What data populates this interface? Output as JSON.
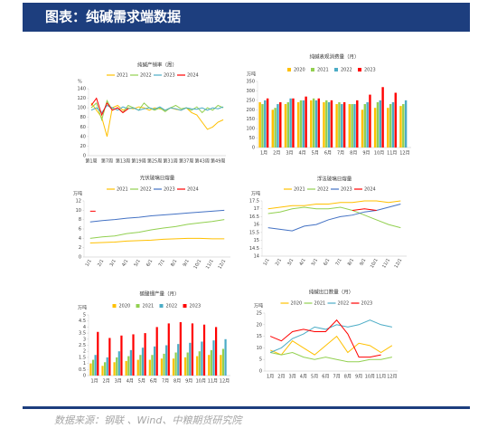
{
  "header": {
    "title": "图表：纯碱需求端数据"
  },
  "footer": {
    "source": "数据来源：钢联 、Wind、中粮期货研究院"
  },
  "chart_data": [
    {
      "type": "line",
      "title": "纯碱产销率（周）",
      "y_label": "%",
      "ylim": [
        0,
        140
      ],
      "yticks": [
        0,
        20,
        40,
        60,
        80,
        100,
        120,
        140
      ],
      "categories": [
        "第1周",
        null,
        null,
        "第7周",
        null,
        null,
        "第13周",
        null,
        null,
        "第19周",
        null,
        null,
        "第25周",
        null,
        null,
        "第31周",
        null,
        null,
        "第37周",
        null,
        null,
        "第43周",
        null,
        null,
        "第49周",
        null
      ],
      "series": [
        {
          "name": "2021",
          "color": "#ffc000",
          "values": [
            110,
            95,
            80,
            40,
            100,
            105,
            95,
            100,
            98,
            102,
            100,
            95,
            100,
            98,
            95,
            100,
            97,
            95,
            100,
            90,
            85,
            70,
            55,
            60,
            70,
            75
          ]
        },
        {
          "name": "2022",
          "color": "#92d050",
          "values": [
            100,
            110,
            75,
            115,
            95,
            100,
            90,
            105,
            100,
            95,
            110,
            100,
            95,
            100,
            92,
            100,
            105,
            98,
            100,
            95,
            102,
            90,
            100,
            95,
            105,
            100
          ]
        },
        {
          "name": "2023",
          "color": "#4bacc6",
          "values": [
            95,
            100,
            90,
            105,
            100,
            95,
            102,
            98,
            100,
            95,
            98,
            100,
            97,
            102,
            95,
            100,
            98,
            95,
            100,
            98,
            97,
            100,
            95,
            100,
            98,
            102
          ]
        },
        {
          "name": "2024",
          "color": "#ff0000",
          "values": [
            105,
            120,
            85,
            110,
            95,
            100,
            90,
            98,
            null,
            null,
            null,
            null,
            null,
            null,
            null,
            null,
            null,
            null,
            null,
            null,
            null,
            null,
            null,
            null,
            null,
            null
          ]
        }
      ]
    },
    {
      "type": "bar",
      "title": "纯碱表观消费量（月）",
      "y_label": "万吨",
      "ylim": [
        0,
        350
      ],
      "yticks": [
        0,
        50,
        100,
        150,
        200,
        250,
        300,
        350
      ],
      "categories": [
        "1月",
        "2月",
        "3月",
        "4月",
        "5月",
        "6月",
        "7月",
        "8月",
        "9月",
        "10月",
        "11月",
        "12月"
      ],
      "series": [
        {
          "name": "2020",
          "color": "#ffc000",
          "values": [
            240,
            200,
            230,
            240,
            250,
            240,
            230,
            230,
            200,
            210,
            210,
            220
          ]
        },
        {
          "name": "2021",
          "color": "#92d050",
          "values": [
            230,
            210,
            240,
            250,
            260,
            250,
            240,
            230,
            230,
            240,
            230,
            230
          ]
        },
        {
          "name": "2022",
          "color": "#4bacc6",
          "values": [
            250,
            230,
            260,
            250,
            250,
            240,
            230,
            230,
            240,
            250,
            240,
            250
          ]
        },
        {
          "name": "2023",
          "color": "#ff0000",
          "values": [
            260,
            240,
            260,
            270,
            260,
            250,
            240,
            250,
            280,
            320,
            290,
            null
          ]
        }
      ]
    },
    {
      "type": "line",
      "title": "光伏玻璃日熔量",
      "y_label": "万吨",
      "ylim": [
        0,
        12
      ],
      "yticks": [
        0,
        2,
        4,
        6,
        8,
        10,
        12
      ],
      "categories": [
        "1/1",
        "2/1",
        "3/1",
        "4/1",
        "5/1",
        "6/1",
        "7/1",
        "8/1",
        "9/1",
        "10/1",
        "11/1",
        "12/1"
      ],
      "series": [
        {
          "name": "2021",
          "color": "#ffc000",
          "values": [
            3,
            3.1,
            3.2,
            3.4,
            3.5,
            3.6,
            3.8,
            3.9,
            4,
            4,
            3.9,
            3.9
          ]
        },
        {
          "name": "2022",
          "color": "#92d050",
          "values": [
            4,
            4.3,
            4.5,
            5,
            5.3,
            5.8,
            6.2,
            6.5,
            7,
            7.3,
            7.6,
            8
          ]
        },
        {
          "name": "2023",
          "color": "#4472c4",
          "values": [
            7.5,
            7.8,
            8,
            8.3,
            8.5,
            8.8,
            9,
            9.2,
            9.4,
            9.6,
            9.8,
            10
          ]
        },
        {
          "name": "2024",
          "color": "#ff0000",
          "values": [
            9.8,
            null,
            null,
            null,
            null,
            null,
            null,
            null,
            null,
            null,
            null,
            null
          ]
        }
      ]
    },
    {
      "type": "line",
      "title": "浮法玻璃日熔量",
      "y_label": "万吨",
      "ylim": [
        14,
        17.5
      ],
      "yticks": [
        14,
        14.5,
        15,
        15.5,
        16,
        16.5,
        17,
        17.5
      ],
      "categories": [
        "1/1",
        "2/1",
        "3/1",
        "4/1",
        "5/1",
        "6/1",
        "7/1",
        "8/1",
        "9/1",
        "10/1",
        "11/1",
        "12/1"
      ],
      "series": [
        {
          "name": "2021",
          "color": "#ffc000",
          "values": [
            17.0,
            17.1,
            17.2,
            17.2,
            17.3,
            17.3,
            17.4,
            17.4,
            17.5,
            17.5,
            17.4,
            17.5
          ]
        },
        {
          "name": "2022",
          "color": "#92d050",
          "values": [
            16.7,
            16.8,
            17.0,
            17.1,
            17.0,
            17.0,
            17.1,
            16.9,
            16.6,
            16.3,
            16.0,
            15.8
          ]
        },
        {
          "name": "2023",
          "color": "#4472c4",
          "values": [
            15.8,
            15.7,
            15.6,
            15.9,
            16.0,
            16.3,
            16.5,
            16.6,
            16.8,
            16.9,
            17.1,
            17.3
          ]
        },
        {
          "name": "2024",
          "color": "#ff0000",
          "values": [
            null,
            null,
            null,
            null,
            null,
            null,
            null,
            16.9,
            17.0,
            16.9,
            null,
            null
          ]
        }
      ]
    },
    {
      "type": "bar",
      "title": "碳酸锂产量（月）",
      "y_label": "万吨",
      "ylim": [
        0,
        5
      ],
      "yticks": [
        0,
        0.5,
        1,
        1.5,
        2,
        2.5,
        3,
        3.5,
        4,
        4.5,
        5
      ],
      "categories": [
        "1月",
        "2月",
        "3月",
        "4月",
        "5月",
        "6月",
        "7月",
        "8月",
        "9月",
        "10月",
        "11月",
        "12月"
      ],
      "series": [
        {
          "name": "2020",
          "color": "#ffc000",
          "values": [
            1.0,
            0.8,
            1.1,
            1.2,
            1.3,
            1.3,
            1.4,
            1.4,
            1.5,
            1.6,
            1.7,
            1.7
          ]
        },
        {
          "name": "2021",
          "color": "#92d050",
          "values": [
            1.3,
            1.1,
            1.5,
            1.6,
            1.7,
            1.7,
            1.8,
            1.9,
            1.9,
            2.0,
            2.1,
            2.2
          ]
        },
        {
          "name": "2022",
          "color": "#4bacc6",
          "values": [
            1.7,
            1.5,
            2.0,
            2.1,
            2.3,
            2.4,
            2.5,
            2.6,
            2.7,
            2.8,
            2.9,
            3.0
          ]
        },
        {
          "name": "2023",
          "color": "#ff0000",
          "values": [
            3.6,
            3.1,
            3.3,
            3.4,
            3.5,
            4.0,
            4.3,
            4.4,
            4.3,
            4.2,
            4.0,
            null
          ]
        }
      ]
    },
    {
      "type": "line",
      "title": "纯碱出口数量（月）",
      "y_label": "万吨",
      "ylim": [
        0,
        25
      ],
      "yticks": [
        0,
        5,
        10,
        15,
        20,
        25
      ],
      "categories": [
        "1月",
        "2月",
        "3月",
        "4月",
        "5月",
        "6月",
        "7月",
        "8月",
        "9月",
        "10月",
        "11月",
        "12月"
      ],
      "series": [
        {
          "name": "2020",
          "color": "#ffc000",
          "values": [
            9,
            7,
            13,
            10,
            7,
            11,
            15,
            8,
            12,
            11,
            8,
            11
          ]
        },
        {
          "name": "2021",
          "color": "#92d050",
          "values": [
            8,
            7,
            8,
            6,
            5,
            6,
            5,
            4,
            4,
            5,
            5,
            6
          ]
        },
        {
          "name": "2022",
          "color": "#4bacc6",
          "values": [
            8,
            10,
            14,
            16,
            19,
            18,
            20,
            19,
            20,
            22,
            20,
            19
          ]
        },
        {
          "name": "2023",
          "color": "#ff0000",
          "values": [
            15,
            13,
            17,
            18,
            17,
            17,
            22,
            16,
            6,
            6,
            7,
            null
          ]
        }
      ]
    }
  ]
}
